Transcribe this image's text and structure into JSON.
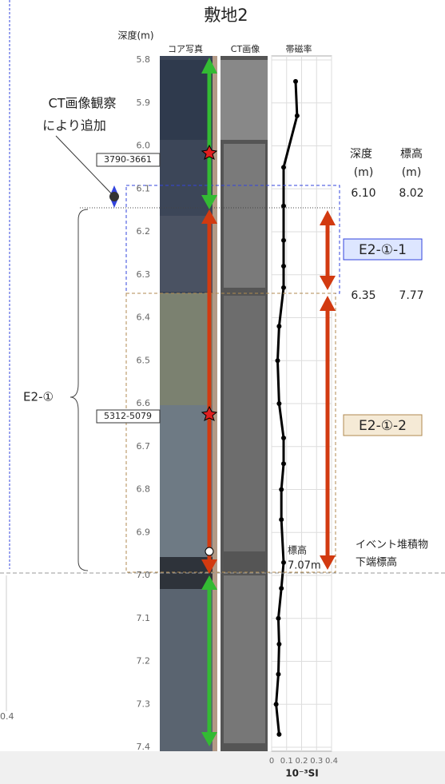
{
  "chart_data": {
    "type": "line",
    "title": "敷地2",
    "y_label": "深度(m)",
    "x_label": "10⁻³SI",
    "columns": [
      "コア写真",
      "CT画像",
      "帯磁率"
    ],
    "ylim": [
      5.8,
      7.4
    ],
    "yticks": [
      5.8,
      5.9,
      {
        "value": 6,
        "label": "6.0"
      },
      6.1,
      6.2,
      6.3,
      6.4,
      6.5,
      6.6,
      6.7,
      6.8,
      6.9,
      {
        "value": 7,
        "label": "7.0"
      },
      7.1,
      7.2,
      7.3,
      7.4
    ],
    "xlim": [
      0,
      0.4
    ],
    "xticks": [
      0,
      0.1,
      0.2,
      0.3,
      0.4
    ],
    "grid": true,
    "series": [
      {
        "color": "#000000",
        "depths": [
          5.85,
          5.93,
          6.05,
          6.14,
          6.22,
          6.28,
          6.33,
          6.42,
          6.5,
          6.6,
          6.68,
          6.74,
          6.8,
          6.87,
          6.97,
          7.03,
          7.1,
          7.16,
          7.23,
          7.3,
          7.37
        ],
        "values": [
          0.16,
          0.17,
          0.08,
          0.08,
          0.08,
          0.08,
          0.08,
          0.05,
          0.04,
          0.05,
          0.08,
          0.08,
          0.065,
          0.065,
          0.08,
          0.065,
          0.045,
          0.05,
          0.045,
          0.03,
          0.05
        ]
      }
    ]
  },
  "annotations": {
    "ct_note": [
      "CT画像観察",
      "により追加"
    ],
    "sample_1": "3790-3661",
    "sample_2": "5312-5079",
    "unit_e2": "E2-①",
    "unit_e2_1": "E2-①-1",
    "unit_e2_2": "E2-①-2",
    "table_header": [
      "深度",
      "標高"
    ],
    "table_units": [
      "(m)",
      "(m)"
    ],
    "row_1": [
      "6.10",
      "8.02"
    ],
    "row_2": [
      "6.35",
      "7.77"
    ],
    "event_base": [
      "イベント堆積物",
      "下端標高"
    ],
    "elev_label": "標高",
    "elev_value": "7.07m",
    "left_fragment_tick": "0.4"
  }
}
